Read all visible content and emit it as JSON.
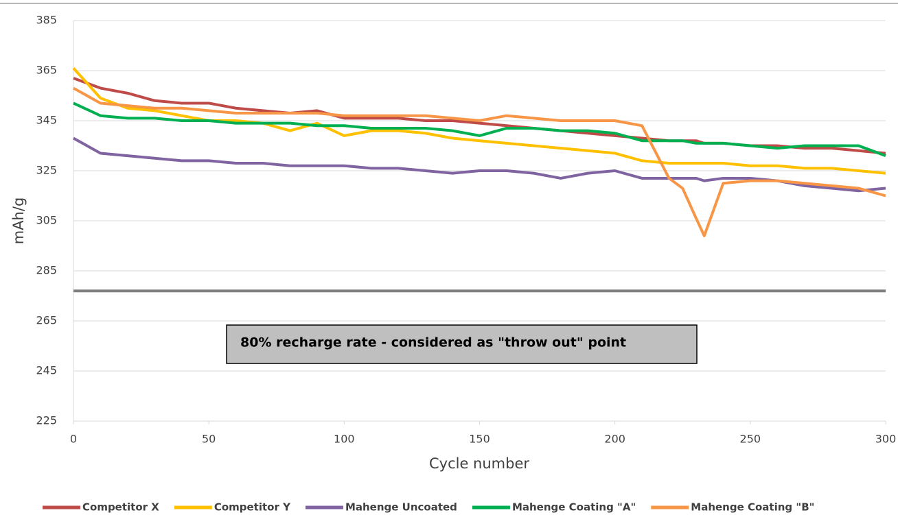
{
  "chart_data": {
    "type": "line",
    "x_label": "Cycle number",
    "y_label": "mAh/g",
    "annotation": "80% recharge rate - considered as \"throw out\" point",
    "reference_line": 277,
    "xlim": [
      0,
      300
    ],
    "xticks": [
      0,
      50,
      100,
      150,
      200,
      250,
      300
    ],
    "ylim": [
      225,
      385
    ],
    "yticks": [
      225,
      245,
      265,
      285,
      305,
      325,
      345,
      365,
      385
    ],
    "grid": true,
    "x": [
      0,
      10,
      20,
      30,
      40,
      50,
      60,
      70,
      80,
      90,
      100,
      110,
      120,
      130,
      140,
      150,
      160,
      170,
      180,
      190,
      200,
      210,
      220,
      225,
      230,
      233,
      240,
      250,
      260,
      270,
      280,
      290,
      300
    ],
    "series": [
      {
        "name": "Competitor X",
        "color": "#be4b48",
        "values": [
          362,
          358,
          356,
          353,
          352,
          352,
          350,
          349,
          348,
          349,
          346,
          346,
          346,
          345,
          345,
          344,
          343,
          342,
          341,
          340,
          339,
          338,
          337,
          337,
          337,
          336,
          336,
          335,
          335,
          334,
          334,
          333,
          332
        ]
      },
      {
        "name": "Competitor Y",
        "color": "#ffc000",
        "values": [
          366,
          354,
          350,
          349,
          347,
          345,
          345,
          344,
          341,
          344,
          339,
          341,
          341,
          340,
          338,
          337,
          336,
          335,
          334,
          333,
          332,
          329,
          328,
          328,
          328,
          328,
          328,
          327,
          327,
          326,
          326,
          325,
          324
        ]
      },
      {
        "name": "Mahenge Uncoated",
        "color": "#8064a2",
        "values": [
          338,
          332,
          331,
          330,
          329,
          329,
          328,
          328,
          327,
          327,
          327,
          326,
          326,
          325,
          324,
          325,
          325,
          324,
          322,
          324,
          325,
          322,
          322,
          322,
          322,
          321,
          322,
          322,
          321,
          319,
          318,
          317,
          318
        ]
      },
      {
        "name": "Mahenge Coating \"A\"",
        "color": "#00b050",
        "values": [
          352,
          347,
          346,
          346,
          345,
          345,
          344,
          344,
          344,
          343,
          343,
          342,
          342,
          342,
          341,
          339,
          342,
          342,
          341,
          341,
          340,
          337,
          337,
          337,
          336,
          336,
          336,
          335,
          334,
          335,
          335,
          335,
          331
        ]
      },
      {
        "name": "Mahenge Coating \"B\"",
        "color": "#f79646",
        "values": [
          358,
          352,
          351,
          350,
          350,
          349,
          348,
          348,
          348,
          348,
          347,
          347,
          347,
          347,
          346,
          345,
          347,
          346,
          345,
          345,
          345,
          343,
          322,
          318,
          306,
          299,
          320,
          321,
          321,
          320,
          319,
          318,
          315
        ]
      }
    ]
  }
}
